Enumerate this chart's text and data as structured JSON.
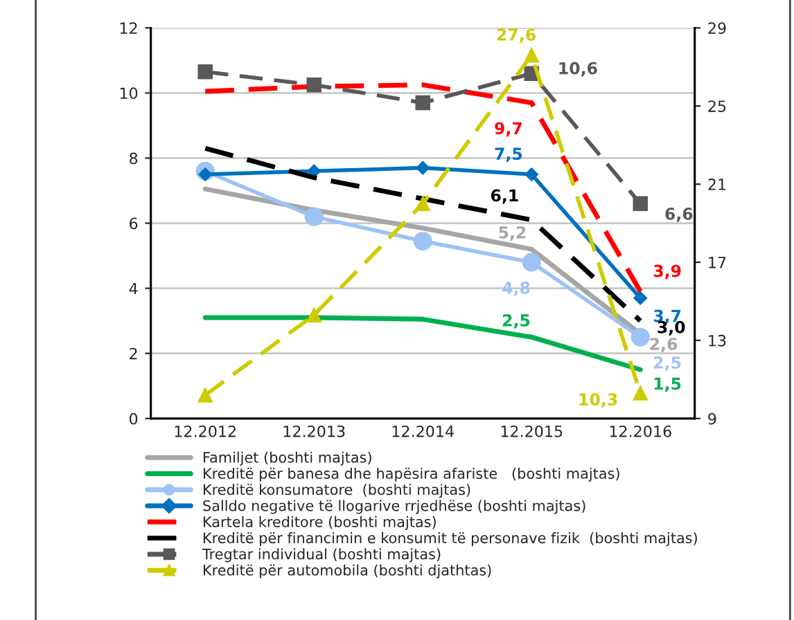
{
  "chart_data": {
    "type": "line",
    "categories": [
      "12.2012",
      "12.2013",
      "12.2014",
      "12.2015",
      "12.2016"
    ],
    "ylim": [
      0,
      12
    ],
    "yticks": [
      0,
      2,
      4,
      6,
      8,
      10,
      12
    ],
    "y2lim": [
      9,
      29
    ],
    "y2ticks": [
      9,
      13,
      17,
      21,
      25,
      29
    ],
    "grid": "y",
    "legend": "bottom",
    "series": [
      {
        "name": "Familjet (boshti majtas)",
        "color": "#a6a6a6",
        "values": [
          7.05,
          6.4,
          5.85,
          5.2,
          2.6
        ],
        "value_labels": [
          null,
          null,
          null,
          "5,2",
          "2,6"
        ],
        "marker": "none",
        "line_style": "solid"
      },
      {
        "name": "Kreditë për banesa dhe hapësira afariste   (boshti majtas)",
        "color": "#00b050",
        "values": [
          3.1,
          3.1,
          3.05,
          2.5,
          1.5
        ],
        "value_labels": [
          null,
          null,
          null,
          "2,5",
          "1,5"
        ],
        "marker": "none",
        "line_style": "solid"
      },
      {
        "name": "Kreditë konsumatore  (boshti majtas)",
        "color": "#9dc3f5",
        "values": [
          7.6,
          6.2,
          5.45,
          4.8,
          2.5
        ],
        "value_labels": [
          null,
          null,
          null,
          "4,8",
          "2,5"
        ],
        "marker": "circle",
        "line_style": "solid"
      },
      {
        "name": "Salldo negative të llogarive rrjedhëse (boshti majtas)",
        "color": "#0070c0",
        "values": [
          7.5,
          7.6,
          7.7,
          7.5,
          3.7
        ],
        "value_labels": [
          null,
          null,
          null,
          "7,5",
          "3,7"
        ],
        "marker": "diamond",
        "line_style": "solid"
      },
      {
        "name": "Kartela kreditore (boshti majtas)",
        "color": "#ff0000",
        "values": [
          10.05,
          10.2,
          10.25,
          9.7,
          3.9
        ],
        "value_labels": [
          null,
          null,
          null,
          "9,7",
          "3,9"
        ],
        "marker": "none",
        "line_style": "dashed"
      },
      {
        "name": "Kreditë për financimin e konsumit të personave fizik  (boshti majtas)",
        "color": "#000000",
        "values": [
          8.3,
          7.4,
          6.75,
          6.1,
          3.0
        ],
        "value_labels": [
          null,
          null,
          null,
          "6,1",
          "3,0"
        ],
        "marker": "none",
        "line_style": "dashed"
      },
      {
        "name": "Tregtar individual (boshti majtas)",
        "color": "#595959",
        "values": [
          10.65,
          10.25,
          9.7,
          10.6,
          6.6
        ],
        "value_labels": [
          null,
          null,
          null,
          "10,6",
          "6,6"
        ],
        "marker": "square",
        "line_style": "dashed"
      },
      {
        "name": "Kreditë për automobila (boshti djathtas)",
        "color": "#cccc00",
        "values": [
          10.2,
          14.3,
          20.0,
          27.6,
          10.3
        ],
        "value_labels": [
          null,
          null,
          null,
          "27,6",
          "10,3"
        ],
        "marker": "triangle",
        "line_style": "dashed",
        "axis": "y2"
      }
    ]
  }
}
